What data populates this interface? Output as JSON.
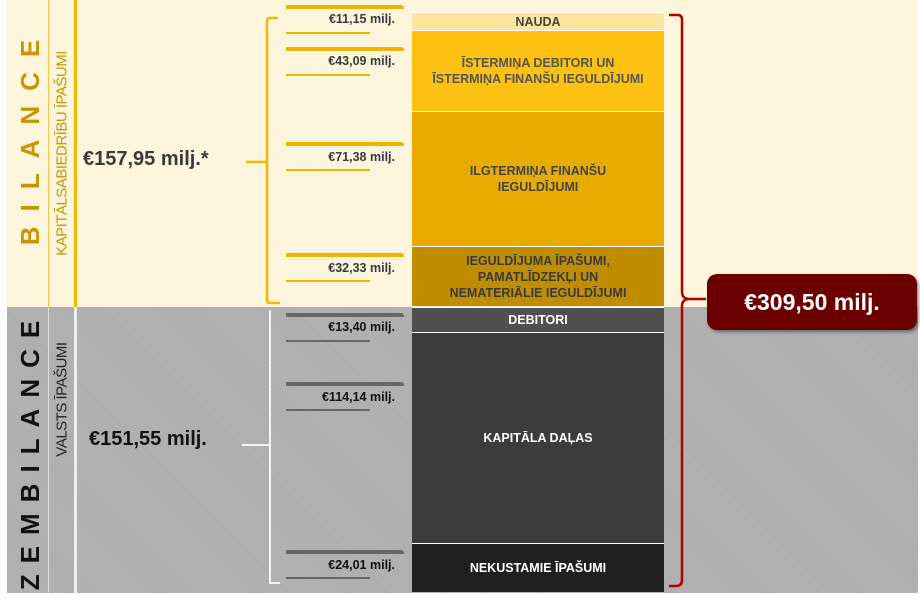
{
  "balance": {
    "title": "BILANCE",
    "subtitle": "KAPITĀLSABIEDRĪBU ĪPAŠUMI",
    "total": "€157,95 milj.*",
    "items": [
      {
        "value": "€11,15 milj.",
        "label": "NAUDA",
        "color": "#fde7a0"
      },
      {
        "value": "€43,09 milj.",
        "label": "ĪSTERMIŅA DEBITORI UN ĪSTERMIŅA FINANŠU IEGULDĪJUMI",
        "color": "#fdc112"
      },
      {
        "value": "€71,38 milj.",
        "label": "ILGTERMIŅA FINANŠU IEGULDĪJUMI",
        "color": "#e8ac00"
      },
      {
        "value": "€32,33 milj.",
        "label": "IEGULDĪJUMA ĪPAŠUMI, PAMATLĪDZEKĻI UN NEMATERIĀLIE IEGULDĪJUMI",
        "color": "#c08d00"
      }
    ]
  },
  "off_balance": {
    "title": "ZEMBILANCE",
    "subtitle": "VALSTS ĪPAŠUMI",
    "total": "€151,55 milj.",
    "items": [
      {
        "value": "€13,40 milj.",
        "label": "DEBITORI",
        "color": "#505050"
      },
      {
        "value": "€114,14 milj.",
        "label": "KAPITĀLA DAĻAS",
        "color": "#3c3c3c"
      },
      {
        "value": "€24,01 milj.",
        "label": "NEKUSTAMIE ĪPAŠUMI",
        "color": "#202020"
      }
    ]
  },
  "grand_total": "€309,50 milj.",
  "colors": {
    "accent_gold": "#f5b800",
    "total_box": "#6b0000",
    "bracket_red": "#b00000"
  }
}
